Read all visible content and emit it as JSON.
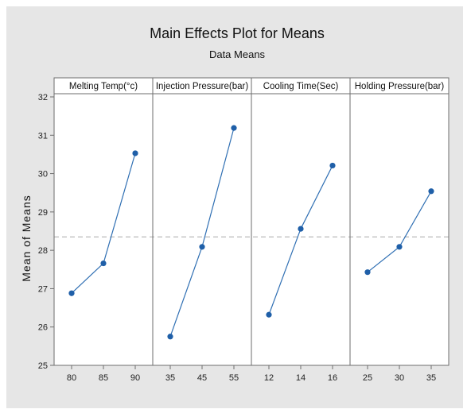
{
  "chart_data": {
    "type": "line",
    "title": "Main Effects Plot for Means",
    "subtitle": "Data Means",
    "ylabel": "Mean of Means",
    "ylim": [
      25,
      32
    ],
    "yticks": [
      25,
      26,
      27,
      28,
      29,
      30,
      31,
      32
    ],
    "reference_line": 28.35,
    "grid": false,
    "series": [
      {
        "name": "Melting Temp(°c)",
        "categories": [
          "80",
          "85",
          "90"
        ],
        "values": [
          26.88,
          27.66,
          30.53
        ]
      },
      {
        "name": "Injection Pressure(bar)",
        "categories": [
          "35",
          "45",
          "55"
        ],
        "values": [
          25.75,
          28.09,
          31.19
        ]
      },
      {
        "name": "Cooling Time(Sec)",
        "categories": [
          "12",
          "14",
          "16"
        ],
        "values": [
          26.32,
          28.56,
          30.21
        ]
      },
      {
        "name": "Holding Pressure(bar)",
        "categories": [
          "25",
          "30",
          "35"
        ],
        "values": [
          27.43,
          28.09,
          29.54
        ]
      }
    ],
    "colors": {
      "background": "#e6e6e6",
      "plot_background": "#ffffff",
      "line": "#2f6fb3",
      "marker": "#1f5fa8",
      "reference": "#a8a8a8",
      "frame": "#6e6e6e"
    }
  }
}
